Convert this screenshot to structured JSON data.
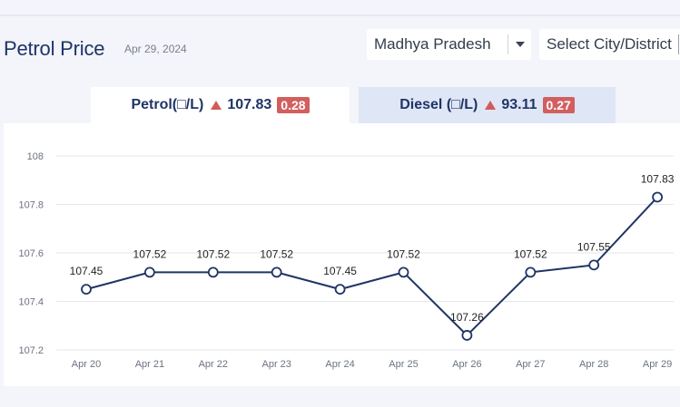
{
  "page": {
    "title": "Petrol Price",
    "date": "Apr 29, 2024"
  },
  "filters": {
    "state": "Madhya Pradesh",
    "city_placeholder": "Select City/District"
  },
  "tabs": [
    {
      "label": "Petrol(□/L)",
      "price": "107.83",
      "change": "0.28",
      "active": true
    },
    {
      "label": "Diesel (□/L)",
      "price": "93.11",
      "change": "0.27",
      "active": false
    }
  ],
  "colors": {
    "line": "#1f3466",
    "badge": "#d25f5f",
    "up_arrow": "#d25a5a",
    "grid": "#e3e6ec"
  },
  "chart_data": {
    "type": "line",
    "categories": [
      "Apr 20",
      "Apr 21",
      "Apr 22",
      "Apr 23",
      "Apr 24",
      "Apr 25",
      "Apr 26",
      "Apr 27",
      "Apr 28",
      "Apr 29"
    ],
    "values": [
      107.45,
      107.52,
      107.52,
      107.52,
      107.45,
      107.52,
      107.26,
      107.52,
      107.55,
      107.83
    ],
    "data_labels": [
      "107.45",
      "107.52",
      "107.52",
      "107.52",
      "107.45",
      "107.52",
      "107.26",
      "107.52",
      "107.55",
      "107.83"
    ],
    "yticks": [
      "108",
      "107.8",
      "107.6",
      "107.4",
      "107.2"
    ],
    "ytick_values": [
      108,
      107.8,
      107.6,
      107.4,
      107.2
    ],
    "ylim": [
      107.2,
      108
    ],
    "grid": true,
    "title": "",
    "xlabel": "",
    "ylabel": ""
  }
}
